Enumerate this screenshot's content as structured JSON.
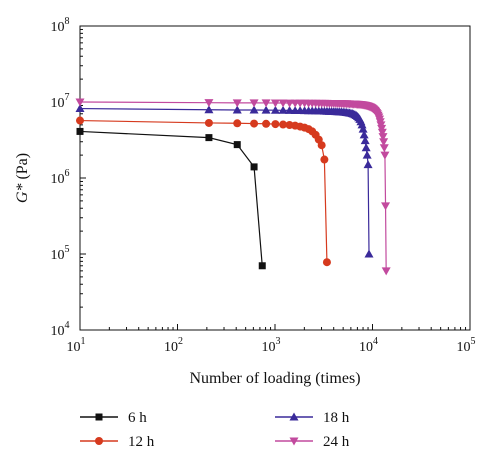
{
  "chart_data": {
    "type": "line",
    "title": "",
    "xlabel": "Number of loading (times)",
    "ylabel": "G* (Pa)",
    "ylabel_parts": {
      "italic": "G*",
      "rest": " (Pa)"
    },
    "xscale": "log",
    "yscale": "log",
    "xlim": [
      10,
      100000
    ],
    "ylim": [
      10000,
      100000000
    ],
    "x_ticks": [
      {
        "value": 10,
        "base": "10",
        "exp": "1"
      },
      {
        "value": 100,
        "base": "10",
        "exp": "2"
      },
      {
        "value": 1000,
        "base": "10",
        "exp": "3"
      },
      {
        "value": 10000,
        "base": "10",
        "exp": "4"
      },
      {
        "value": 100000,
        "base": "10",
        "exp": "5"
      }
    ],
    "y_ticks": [
      {
        "value": 10000,
        "base": "10",
        "exp": "4"
      },
      {
        "value": 100000,
        "base": "10",
        "exp": "5"
      },
      {
        "value": 1000000,
        "base": "10",
        "exp": "6"
      },
      {
        "value": 10000000,
        "base": "10",
        "exp": "7"
      },
      {
        "value": 100000000,
        "base": "10",
        "exp": "8"
      }
    ],
    "grid": false,
    "legend_position": "bottom",
    "series": [
      {
        "name": "6 h",
        "color": "#111111",
        "marker": "square",
        "points": [
          [
            10,
            4100000
          ],
          [
            210,
            3400000
          ],
          [
            410,
            2750000
          ],
          [
            610,
            1400000
          ],
          [
            740,
            70000
          ]
        ]
      },
      {
        "name": "12 h",
        "color": "#d63a1e",
        "marker": "circle",
        "points": [
          [
            10,
            5700000
          ],
          [
            210,
            5300000
          ],
          [
            410,
            5250000
          ],
          [
            610,
            5200000
          ],
          [
            810,
            5170000
          ],
          [
            1010,
            5120000
          ],
          [
            1210,
            5050000
          ],
          [
            1410,
            4980000
          ],
          [
            1610,
            4880000
          ],
          [
            1810,
            4750000
          ],
          [
            2010,
            4600000
          ],
          [
            2210,
            4400000
          ],
          [
            2410,
            4100000
          ],
          [
            2610,
            3700000
          ],
          [
            2810,
            3200000
          ],
          [
            3010,
            2700000
          ],
          [
            3210,
            1750000
          ],
          [
            3410,
            78000
          ]
        ]
      },
      {
        "name": "18 h",
        "color": "#3a2a9a",
        "marker": "triangle-up",
        "points": [
          [
            10,
            8200000
          ],
          [
            210,
            7900000
          ],
          [
            410,
            7850000
          ],
          [
            610,
            7850000
          ],
          [
            810,
            7820000
          ],
          [
            1010,
            7800000
          ],
          [
            1210,
            7780000
          ],
          [
            1410,
            7760000
          ],
          [
            1610,
            7740000
          ],
          [
            1810,
            7720000
          ],
          [
            2010,
            7700000
          ],
          [
            2210,
            7680000
          ],
          [
            2410,
            7660000
          ],
          [
            2610,
            7640000
          ],
          [
            2810,
            7620000
          ],
          [
            3010,
            7600000
          ],
          [
            3210,
            7580000
          ],
          [
            3410,
            7560000
          ],
          [
            3610,
            7540000
          ],
          [
            3810,
            7520000
          ],
          [
            4010,
            7500000
          ],
          [
            4210,
            7480000
          ],
          [
            4410,
            7450000
          ],
          [
            4610,
            7420000
          ],
          [
            4810,
            7390000
          ],
          [
            5010,
            7360000
          ],
          [
            5210,
            7320000
          ],
          [
            5410,
            7280000
          ],
          [
            5610,
            7230000
          ],
          [
            5810,
            7170000
          ],
          [
            6010,
            7100000
          ],
          [
            6210,
            7020000
          ],
          [
            6410,
            6920000
          ],
          [
            6610,
            6800000
          ],
          [
            6810,
            6650000
          ],
          [
            7010,
            6450000
          ],
          [
            7210,
            6200000
          ],
          [
            7410,
            5900000
          ],
          [
            7610,
            5500000
          ],
          [
            7810,
            5000000
          ],
          [
            8010,
            4400000
          ],
          [
            8210,
            3700000
          ],
          [
            8410,
            3100000
          ],
          [
            8610,
            2500000
          ],
          [
            8810,
            2000000
          ],
          [
            9010,
            1500000
          ],
          [
            9210,
            100000
          ]
        ]
      },
      {
        "name": "24 h",
        "color": "#c24a9e",
        "marker": "triangle-down",
        "points": [
          [
            10,
            10000000
          ],
          [
            210,
            9800000
          ],
          [
            410,
            9750000
          ],
          [
            610,
            9750000
          ],
          [
            810,
            9720000
          ],
          [
            1010,
            9700000
          ],
          [
            1210,
            9700000
          ],
          [
            1410,
            9680000
          ],
          [
            1610,
            9670000
          ],
          [
            1810,
            9660000
          ],
          [
            2010,
            9650000
          ],
          [
            2210,
            9640000
          ],
          [
            2410,
            9630000
          ],
          [
            2610,
            9620000
          ],
          [
            2810,
            9610000
          ],
          [
            3010,
            9600000
          ],
          [
            3210,
            9590000
          ],
          [
            3410,
            9580000
          ],
          [
            3610,
            9570000
          ],
          [
            3810,
            9560000
          ],
          [
            4010,
            9550000
          ],
          [
            4210,
            9540000
          ],
          [
            4410,
            9530000
          ],
          [
            4610,
            9520000
          ],
          [
            4810,
            9510000
          ],
          [
            5010,
            9500000
          ],
          [
            5210,
            9490000
          ],
          [
            5410,
            9480000
          ],
          [
            5610,
            9460000
          ],
          [
            5810,
            9440000
          ],
          [
            6010,
            9420000
          ],
          [
            6210,
            9400000
          ],
          [
            6410,
            9380000
          ],
          [
            6610,
            9360000
          ],
          [
            6810,
            9340000
          ],
          [
            7010,
            9320000
          ],
          [
            7210,
            9300000
          ],
          [
            7410,
            9270000
          ],
          [
            7610,
            9240000
          ],
          [
            7810,
            9200000
          ],
          [
            8010,
            9160000
          ],
          [
            8210,
            9110000
          ],
          [
            8410,
            9060000
          ],
          [
            8610,
            9000000
          ],
          [
            8810,
            8930000
          ],
          [
            9010,
            8850000
          ],
          [
            9210,
            8760000
          ],
          [
            9410,
            8660000
          ],
          [
            9610,
            8550000
          ],
          [
            9810,
            8420000
          ],
          [
            10010,
            8280000
          ],
          [
            10210,
            8120000
          ],
          [
            10410,
            7940000
          ],
          [
            10610,
            7740000
          ],
          [
            10810,
            7520000
          ],
          [
            11010,
            7280000
          ],
          [
            11210,
            7000000
          ],
          [
            11410,
            6700000
          ],
          [
            11610,
            6350000
          ],
          [
            11810,
            5950000
          ],
          [
            12010,
            5500000
          ],
          [
            12210,
            5000000
          ],
          [
            12410,
            4500000
          ],
          [
            12610,
            4000000
          ],
          [
            12810,
            3500000
          ],
          [
            13010,
            3000000
          ],
          [
            13210,
            2500000
          ],
          [
            13410,
            2000000
          ],
          [
            13610,
            430000
          ],
          [
            13810,
            60000
          ]
        ]
      }
    ]
  }
}
